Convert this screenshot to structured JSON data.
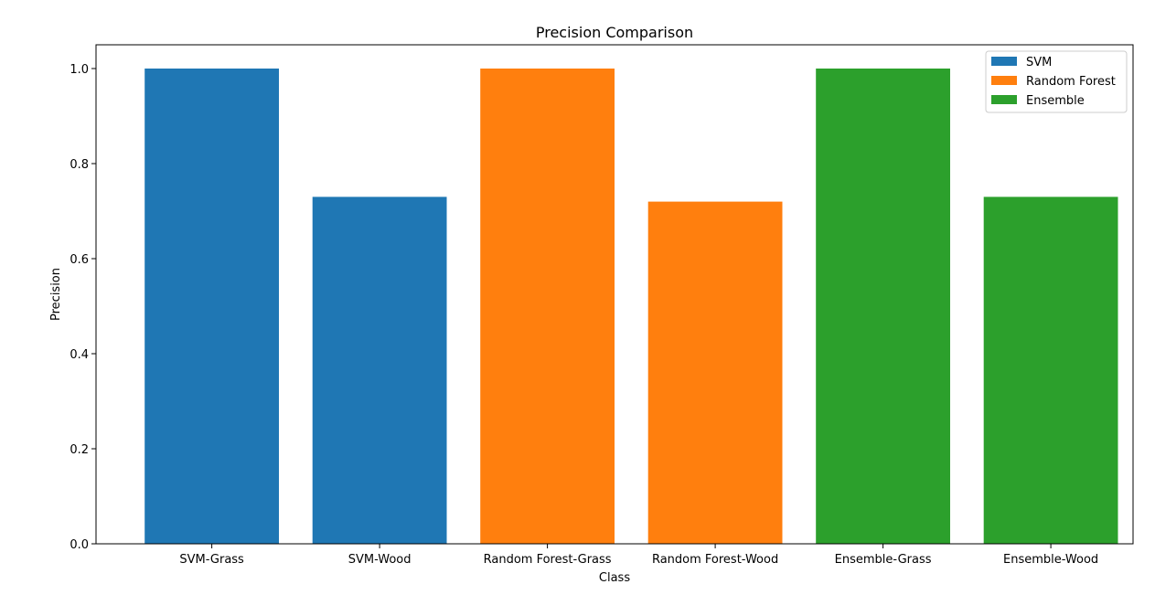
{
  "chart_data": {
    "type": "bar",
    "title": "Precision Comparison",
    "xlabel": "Class",
    "ylabel": "Precision",
    "ylim": [
      0,
      1.05
    ],
    "yticks": [
      "0.0",
      "0.2",
      "0.4",
      "0.6",
      "0.8",
      "1.0"
    ],
    "categories": [
      "SVM-Grass",
      "SVM-Wood",
      "Random Forest-Grass",
      "Random Forest-Wood",
      "Ensemble-Grass",
      "Ensemble-Wood"
    ],
    "series": [
      {
        "name": "SVM",
        "color": "#1f77b4",
        "values": [
          1.0,
          0.73,
          null,
          null,
          null,
          null
        ]
      },
      {
        "name": "Random Forest",
        "color": "#ff7f0e",
        "values": [
          null,
          null,
          1.0,
          0.72,
          null,
          null
        ]
      },
      {
        "name": "Ensemble",
        "color": "#2ca02c",
        "values": [
          null,
          null,
          null,
          null,
          1.0,
          0.73
        ]
      }
    ],
    "grid": false,
    "legend_position": "top-right"
  }
}
